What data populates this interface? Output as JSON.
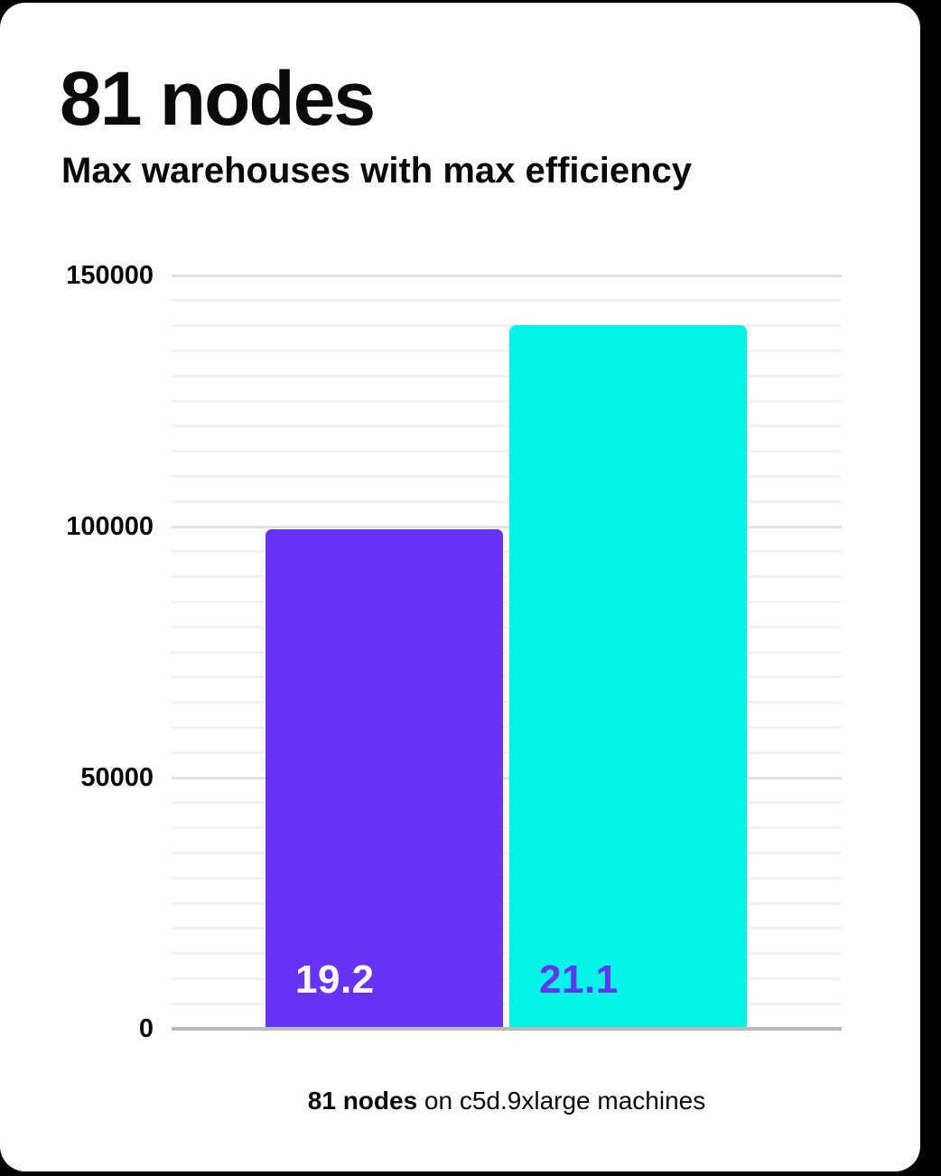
{
  "card": {
    "title": "81 nodes",
    "subtitle": "Max warehouses with max efficiency",
    "caption_bold": "81 nodes",
    "caption_rest": " on c5d.9xlarge machines"
  },
  "colors": {
    "page_background": "#000000",
    "card_background": "#ffffff",
    "text": "#0a0a0a",
    "gridline_minor": "#f2f2f2",
    "gridline_major": "#e2e2e2",
    "axis_baseline": "#b9b9b9"
  },
  "chart_data": {
    "type": "bar",
    "title": "81 nodes",
    "subtitle": "Max warehouses with max efficiency",
    "caption": "81 nodes on c5d.9xlarge machines",
    "xlabel": "",
    "ylabel": "",
    "ylim": [
      0,
      150000
    ],
    "yticks": [
      0,
      50000,
      100000,
      150000
    ],
    "minor_grid_step": 5000,
    "major_grid_step": 50000,
    "grid": true,
    "legend": false,
    "bars": [
      {
        "name": "left-bar",
        "label": "19.2",
        "value": 99500,
        "color": "#6633F7",
        "label_color": "#ffffff"
      },
      {
        "name": "right-bar",
        "label": "21.1",
        "value": 140100,
        "color": "#00F5E8",
        "label_color": "#6633F7"
      }
    ]
  }
}
